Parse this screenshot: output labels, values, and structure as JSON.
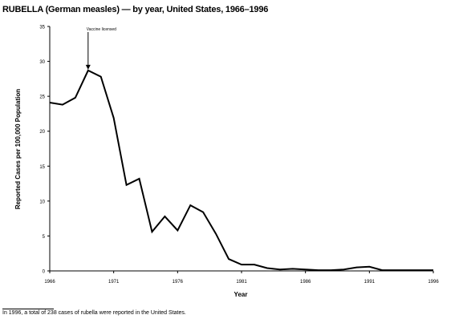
{
  "title": "RUBELLA (German measles) — by year, United States, 1966–1996",
  "footnote": "In 1996, a total of 238 cases of rubella were reported in the United States.",
  "chart_data": {
    "type": "line",
    "title": "RUBELLA (German measles) — by year, United States, 1966–1996",
    "xlabel": "Year",
    "ylabel": "Reported Cases per 100,000 Population",
    "xlim": [
      1966,
      1996
    ],
    "ylim": [
      0,
      35
    ],
    "x_ticks": [
      1966,
      1971,
      1976,
      1981,
      1986,
      1991,
      1996
    ],
    "y_ticks": [
      0,
      5,
      10,
      15,
      20,
      25,
      30,
      35
    ],
    "grid": false,
    "legend": "none",
    "annotations": [
      {
        "text": "Vaccine licensed",
        "x": 1969,
        "y": 28.7
      }
    ],
    "series": [
      {
        "x": [
          1966,
          1967,
          1968,
          1969,
          1970,
          1971,
          1972,
          1973,
          1974,
          1975,
          1976,
          1977,
          1978,
          1979,
          1980,
          1981,
          1982,
          1983,
          1984,
          1985,
          1986,
          1987,
          1988,
          1989,
          1990,
          1991,
          1992,
          1993,
          1994,
          1995,
          1996
        ],
        "values": [
          24.1,
          23.8,
          24.8,
          28.7,
          27.8,
          21.9,
          12.3,
          13.2,
          5.6,
          7.8,
          5.8,
          9.4,
          8.4,
          5.3,
          1.7,
          0.9,
          0.9,
          0.4,
          0.2,
          0.3,
          0.2,
          0.1,
          0.1,
          0.2,
          0.5,
          0.6,
          0.1,
          0.1,
          0.1,
          0.1,
          0.1
        ]
      }
    ]
  }
}
